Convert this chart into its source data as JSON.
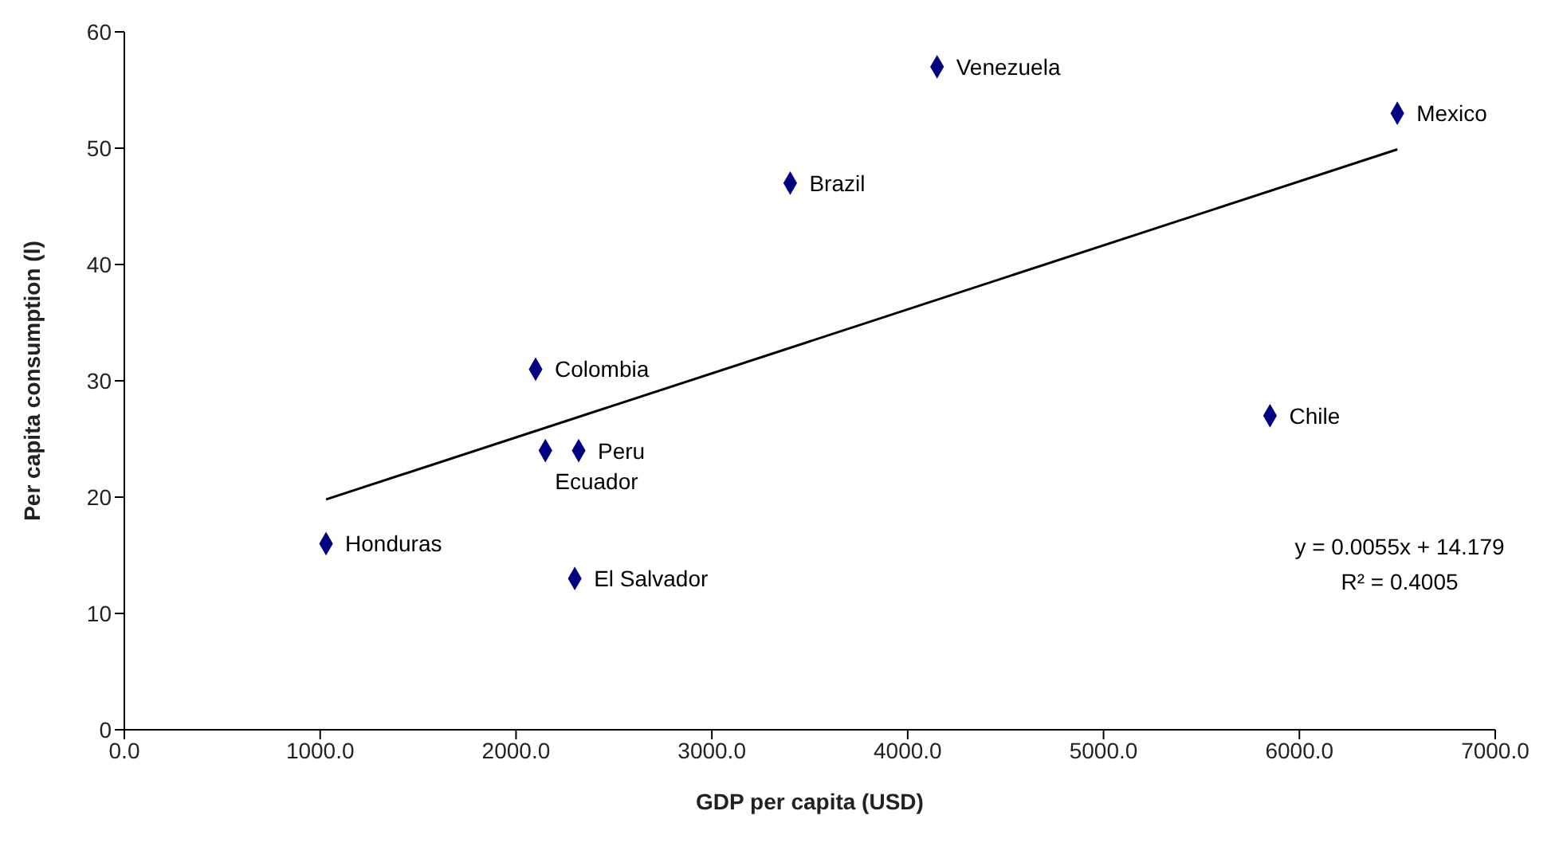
{
  "chart_data": {
    "type": "scatter",
    "xlabel": "GDP per capita (USD)",
    "ylabel": "Per capita consumption (l)",
    "xlim": [
      0,
      7000
    ],
    "xticks": [
      {
        "value": 0,
        "label": "0.0"
      },
      {
        "value": 1000,
        "label": "1000.0"
      },
      {
        "value": 2000,
        "label": "2000.0"
      },
      {
        "value": 3000,
        "label": "3000.0"
      },
      {
        "value": 4000,
        "label": "4000.0"
      },
      {
        "value": 5000,
        "label": "5000.0"
      },
      {
        "value": 6000,
        "label": "6000.0"
      },
      {
        "value": 7000,
        "label": "7000.0"
      }
    ],
    "ylim": [
      0,
      60
    ],
    "yticks": [
      0,
      10,
      20,
      30,
      40,
      50,
      60
    ],
    "grid": false,
    "marker": "diamond",
    "x": [
      1030,
      2300,
      2150,
      2320,
      2100,
      3400,
      4150,
      5850,
      6500
    ],
    "series": [
      {
        "color": "#000080",
        "values": [
          16,
          13,
          24,
          24,
          31,
          47,
          57,
          27,
          53
        ]
      },
      {
        "type": "line",
        "color": "#000000",
        "marker": "none",
        "x": [
          1030,
          6500
        ],
        "values": [
          19.8,
          49.9
        ]
      }
    ],
    "annotations": [
      {
        "text": "Honduras",
        "x": 1030,
        "y": 16
      },
      {
        "text": "El Salvador",
        "x": 2300,
        "y": 13
      },
      {
        "text": "Ecuador",
        "x": 2150,
        "y": 24
      },
      {
        "text": "Peru",
        "x": 2320,
        "y": 24
      },
      {
        "text": "Colombia",
        "x": 2100,
        "y": 31
      },
      {
        "text": "Brazil",
        "x": 3400,
        "y": 47
      },
      {
        "text": "Venezuela",
        "x": 4150,
        "y": 57
      },
      {
        "text": "Chile",
        "x": 5850,
        "y": 27
      },
      {
        "text": "Mexico",
        "x": 6500,
        "y": 53
      },
      "y = 0.0055x + 14.179",
      "R² = 0.4005"
    ]
  }
}
